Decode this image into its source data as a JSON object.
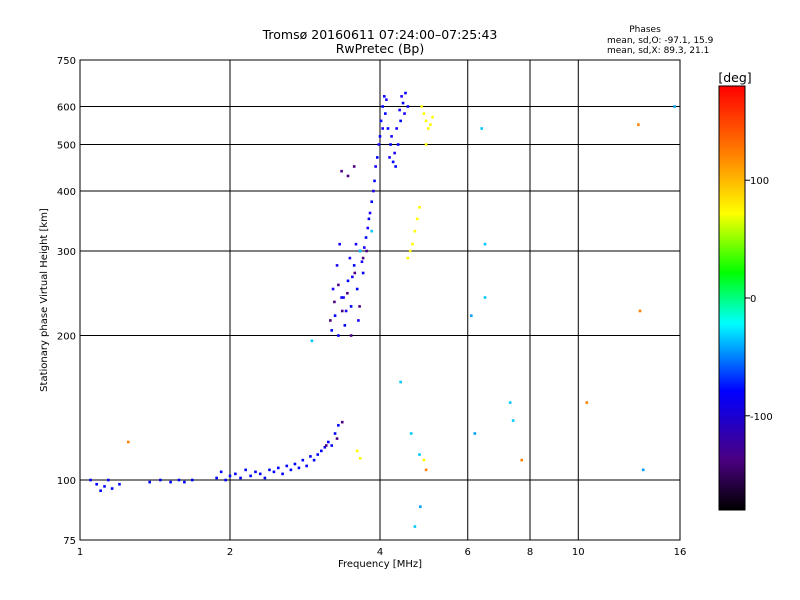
{
  "chart_data": {
    "type": "scatter",
    "title": "Tromsø 20160611 07:24:00–07:25:43",
    "subtitle": "RwPretec (Bp)",
    "xlabel": "Frequency [MHz]",
    "ylabel": "Stationary phase Virtual Height [km]",
    "x_scale": "log",
    "y_scale": "log",
    "xlim": [
      1,
      16
    ],
    "ylim": [
      75,
      750
    ],
    "x_ticks": [
      1,
      2,
      4,
      6,
      8,
      10,
      16
    ],
    "x_tick_labels": [
      "1",
      "2",
      "4",
      "6",
      "8",
      "10",
      "16"
    ],
    "y_ticks": [
      75,
      100,
      200,
      300,
      400,
      500,
      600,
      750
    ],
    "y_tick_labels": [
      "75",
      "100",
      "200",
      "300",
      "400",
      "500",
      "600",
      "750"
    ],
    "grid": true,
    "stats": {
      "heading": "Phases",
      "line_o": "mean, sd,O: -97.1, 15.9",
      "line_x": "mean, sd,X:  89.3, 21.1"
    },
    "colorbar": {
      "label": "[deg]",
      "range": [
        -180,
        180
      ],
      "ticks": [
        100,
        0,
        -100
      ],
      "tick_labels": [
        "100",
        "0",
        "-100"
      ]
    },
    "series": [
      {
        "color": "#0000ff",
        "points": [
          [
            1.05,
            100
          ],
          [
            1.08,
            98
          ],
          [
            1.1,
            95
          ],
          [
            1.12,
            97
          ],
          [
            1.14,
            100
          ],
          [
            1.16,
            96
          ],
          [
            1.2,
            98
          ],
          [
            1.38,
            99
          ],
          [
            1.45,
            100
          ],
          [
            1.52,
            99
          ],
          [
            1.58,
            100
          ],
          [
            1.62,
            99
          ],
          [
            1.68,
            100
          ],
          [
            1.88,
            101
          ],
          [
            1.92,
            104
          ],
          [
            1.96,
            100
          ],
          [
            2.0,
            102
          ],
          [
            2.05,
            103
          ],
          [
            2.1,
            101
          ],
          [
            2.15,
            105
          ],
          [
            2.2,
            102
          ],
          [
            2.25,
            104
          ],
          [
            2.3,
            103
          ],
          [
            2.35,
            101
          ],
          [
            2.4,
            105
          ],
          [
            2.45,
            104
          ],
          [
            2.5,
            106
          ],
          [
            2.55,
            103
          ],
          [
            2.6,
            107
          ],
          [
            2.65,
            105
          ],
          [
            2.7,
            108
          ],
          [
            2.75,
            106
          ],
          [
            2.8,
            110
          ],
          [
            2.85,
            107
          ],
          [
            2.9,
            112
          ],
          [
            2.95,
            110
          ],
          [
            3.0,
            113
          ],
          [
            3.05,
            115
          ],
          [
            3.1,
            117
          ],
          [
            3.15,
            120
          ],
          [
            3.2,
            118
          ],
          [
            3.25,
            125
          ],
          [
            3.3,
            130
          ],
          [
            3.2,
            205
          ],
          [
            3.25,
            220
          ],
          [
            3.3,
            200
          ],
          [
            3.35,
            240
          ],
          [
            3.4,
            210
          ],
          [
            3.45,
            260
          ],
          [
            3.5,
            230
          ],
          [
            3.55,
            280
          ],
          [
            3.6,
            250
          ],
          [
            3.65,
            300
          ],
          [
            3.7,
            270
          ],
          [
            3.75,
            320
          ],
          [
            3.8,
            350
          ],
          [
            3.85,
            380
          ],
          [
            3.9,
            420
          ],
          [
            3.95,
            470
          ],
          [
            4.0,
            520
          ],
          [
            4.02,
            560
          ],
          [
            4.05,
            600
          ],
          [
            4.08,
            630
          ],
          [
            4.1,
            580
          ],
          [
            4.15,
            540
          ],
          [
            4.2,
            500
          ],
          [
            4.25,
            460
          ],
          [
            4.3,
            450
          ],
          [
            4.35,
            500
          ],
          [
            4.4,
            560
          ],
          [
            4.45,
            610
          ],
          [
            4.5,
            640
          ],
          [
            4.55,
            600
          ]
        ]
      },
      {
        "color": "#1a00ff",
        "points": [
          [
            3.22,
            250
          ],
          [
            3.28,
            280
          ],
          [
            3.32,
            310
          ],
          [
            3.38,
            240
          ],
          [
            3.42,
            225
          ],
          [
            3.48,
            290
          ],
          [
            3.52,
            265
          ],
          [
            3.58,
            310
          ],
          [
            3.62,
            215
          ],
          [
            3.68,
            285
          ],
          [
            3.72,
            305
          ],
          [
            3.78,
            335
          ],
          [
            3.82,
            360
          ],
          [
            3.88,
            400
          ],
          [
            3.92,
            450
          ],
          [
            3.98,
            500
          ],
          [
            4.05,
            540
          ],
          [
            4.12,
            620
          ],
          [
            4.18,
            470
          ],
          [
            4.22,
            520
          ],
          [
            4.28,
            480
          ],
          [
            4.32,
            540
          ],
          [
            4.38,
            590
          ],
          [
            4.42,
            630
          ],
          [
            4.48,
            580
          ]
        ]
      },
      {
        "color": "#4b0082",
        "points": [
          [
            3.18,
            215
          ],
          [
            3.24,
            235
          ],
          [
            3.3,
            255
          ],
          [
            3.36,
            225
          ],
          [
            3.44,
            245
          ],
          [
            3.5,
            200
          ],
          [
            3.56,
            270
          ],
          [
            3.64,
            230
          ],
          [
            3.7,
            290
          ],
          [
            3.76,
            300
          ],
          [
            3.35,
            440
          ],
          [
            3.45,
            430
          ],
          [
            3.55,
            450
          ],
          [
            3.28,
            122
          ],
          [
            3.12,
            118
          ],
          [
            3.36,
            132
          ]
        ]
      },
      {
        "color": "#00c8ff",
        "points": [
          [
            2.92,
            195
          ],
          [
            3.65,
            300
          ],
          [
            3.85,
            330
          ],
          [
            4.4,
            160
          ],
          [
            4.7,
            80
          ],
          [
            4.62,
            125
          ],
          [
            4.8,
            113
          ],
          [
            6.4,
            540
          ],
          [
            6.5,
            310
          ],
          [
            6.5,
            240
          ],
          [
            7.3,
            145
          ],
          [
            7.4,
            133
          ]
        ]
      },
      {
        "color": "#ffff00",
        "points": [
          [
            4.55,
            290
          ],
          [
            4.6,
            300
          ],
          [
            4.65,
            310
          ],
          [
            4.7,
            330
          ],
          [
            4.75,
            350
          ],
          [
            4.8,
            370
          ],
          [
            4.85,
            600
          ],
          [
            4.9,
            580
          ],
          [
            4.95,
            560
          ],
          [
            5.0,
            540
          ],
          [
            5.05,
            550
          ],
          [
            5.1,
            570
          ],
          [
            3.6,
            115
          ],
          [
            3.65,
            111
          ],
          [
            4.95,
            500
          ],
          [
            4.9,
            110
          ]
        ]
      },
      {
        "color": "#ff8000",
        "points": [
          [
            1.25,
            120
          ],
          [
            7.7,
            110
          ],
          [
            10.4,
            145
          ],
          [
            13.3,
            225
          ],
          [
            13.2,
            550
          ],
          [
            4.95,
            105
          ]
        ]
      },
      {
        "color": "#00a0ff",
        "points": [
          [
            6.1,
            220
          ],
          [
            15.6,
            600
          ],
          [
            13.5,
            105
          ],
          [
            4.82,
            88
          ],
          [
            6.2,
            125
          ]
        ]
      }
    ]
  }
}
